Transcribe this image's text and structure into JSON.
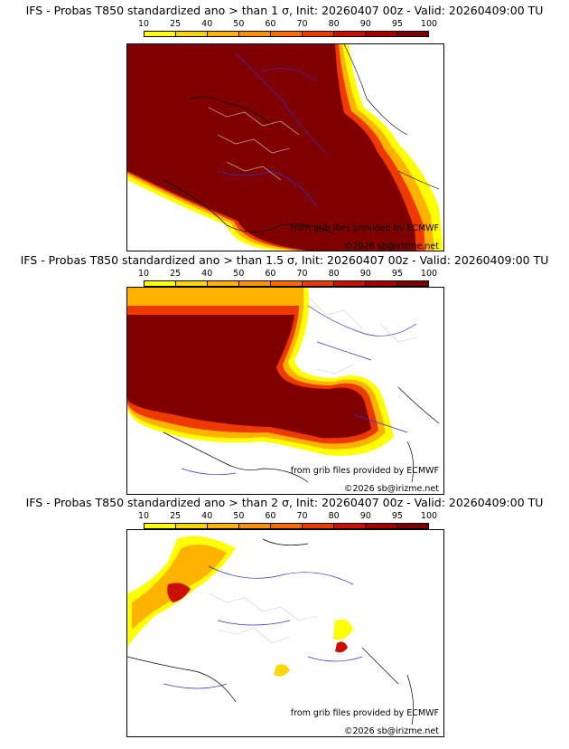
{
  "colorbar": {
    "ticks": [
      "10",
      "25",
      "40",
      "50",
      "60",
      "70",
      "80",
      "90",
      "95",
      "100"
    ],
    "colors": [
      "#ffff00",
      "#ffd700",
      "#ffb300",
      "#ff9000",
      "#ff6a00",
      "#ee3a00",
      "#cc1000",
      "#a80000",
      "#800000"
    ]
  },
  "panels": [
    {
      "title": "IFS - Probas T850  standardized ano > than 1 σ, Init: 20260407 00z - Valid: 20260409:00 TU",
      "source": "from grib files provided by ECMWF",
      "copyright": "©2026 sb@irizme.net",
      "coverage": "high"
    },
    {
      "title": "IFS - Probas T850  standardized ano > than 1.5 σ, Init: 20260407 00z - Valid: 20260409:00 TU",
      "source": "from grib files provided by ECMWF",
      "copyright": "©2026 sb@irizme.net",
      "coverage": "medium"
    },
    {
      "title": "IFS - Probas T850  standardized ano > than 2 σ, Init: 20260407 00z - Valid: 20260409:00 TU",
      "source": "from grib files provided by ECMWF",
      "copyright": "©2026 sb@irizme.net",
      "coverage": "low"
    }
  ]
}
